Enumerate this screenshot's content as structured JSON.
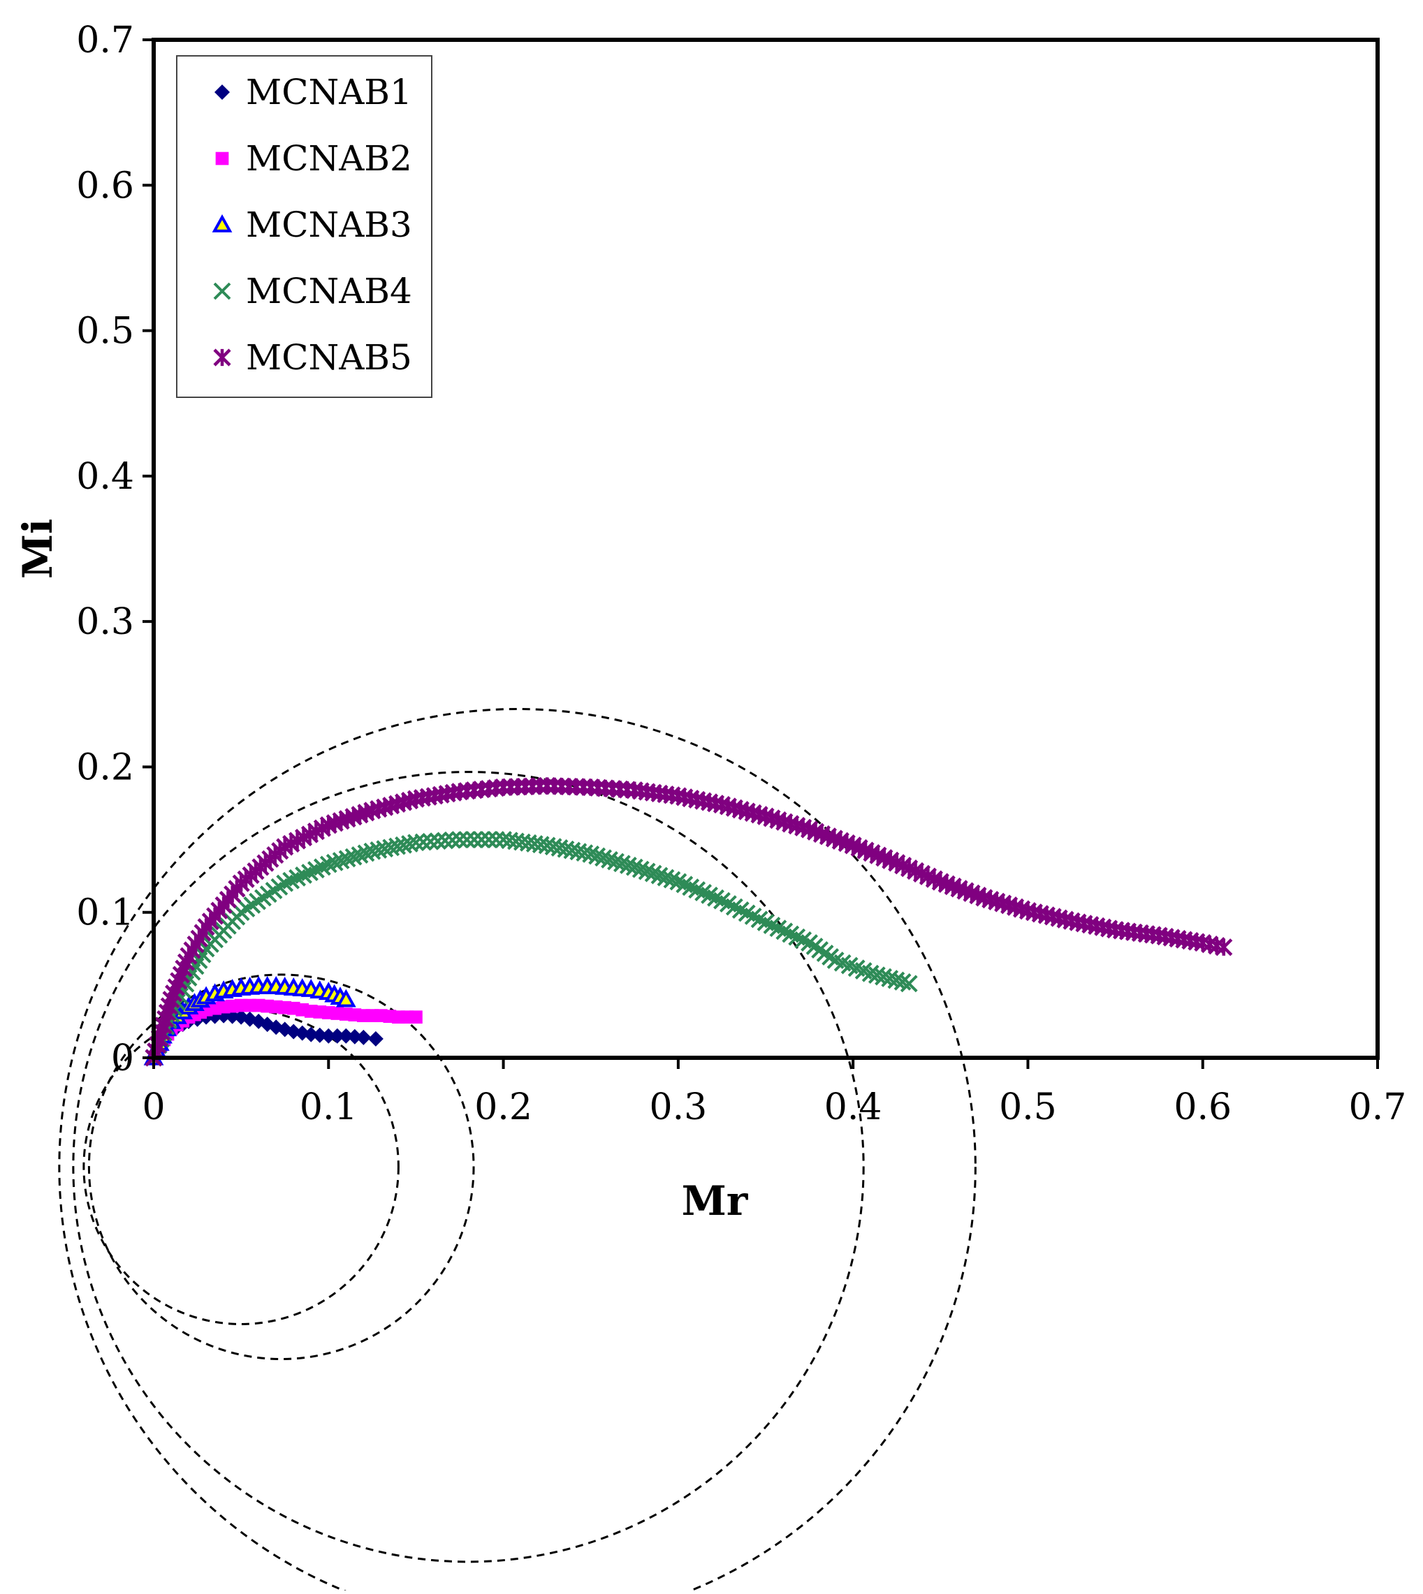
{
  "chart_data": {
    "type": "scatter",
    "title": "",
    "xlabel": "Mr",
    "ylabel": "Mi",
    "xlim": [
      0,
      0.7
    ],
    "ylim": [
      0,
      0.7
    ],
    "xticks": [
      0,
      0.1,
      0.2,
      0.3,
      0.4,
      0.5,
      0.6,
      0.7
    ],
    "yticks": [
      0,
      0.1,
      0.2,
      0.3,
      0.4,
      0.5,
      0.6,
      0.7
    ],
    "xtick_labels": [
      "0",
      "0.1",
      "0.2",
      "0.3",
      "0.4",
      "0.5",
      "0.6",
      "0.7"
    ],
    "ytick_labels": [
      "0",
      "0.1",
      "0.2",
      "0.3",
      "0.4",
      "0.5",
      "0.6",
      "0.7"
    ],
    "grid": false,
    "legend_position": "top-left",
    "series": [
      {
        "name": "MCNAB1",
        "marker": "diamond",
        "color": "#000080",
        "points": [
          [
            0.0,
            0.0
          ],
          [
            0.005,
            0.012
          ],
          [
            0.01,
            0.019
          ],
          [
            0.02,
            0.025
          ],
          [
            0.03,
            0.028
          ],
          [
            0.04,
            0.029
          ],
          [
            0.05,
            0.028
          ],
          [
            0.06,
            0.025
          ],
          [
            0.07,
            0.021
          ],
          [
            0.08,
            0.018
          ],
          [
            0.09,
            0.016
          ],
          [
            0.1,
            0.015
          ],
          [
            0.11,
            0.015
          ],
          [
            0.12,
            0.014
          ],
          [
            0.127,
            0.013
          ]
        ]
      },
      {
        "name": "MCNAB2",
        "marker": "square",
        "color": "#ff00ff",
        "points": [
          [
            0.002,
            0.005
          ],
          [
            0.01,
            0.02
          ],
          [
            0.02,
            0.028
          ],
          [
            0.03,
            0.033
          ],
          [
            0.04,
            0.035
          ],
          [
            0.05,
            0.036
          ],
          [
            0.06,
            0.036
          ],
          [
            0.07,
            0.035
          ],
          [
            0.08,
            0.034
          ],
          [
            0.09,
            0.032
          ],
          [
            0.1,
            0.031
          ],
          [
            0.11,
            0.03
          ],
          [
            0.12,
            0.029
          ],
          [
            0.13,
            0.029
          ],
          [
            0.14,
            0.028
          ],
          [
            0.15,
            0.028
          ]
        ]
      },
      {
        "name": "MCNAB3",
        "marker": "triangle",
        "color": "#0000ff",
        "fill": "#ffff00",
        "points": [
          [
            0.0,
            0.0
          ],
          [
            0.005,
            0.015
          ],
          [
            0.01,
            0.025
          ],
          [
            0.02,
            0.035
          ],
          [
            0.03,
            0.042
          ],
          [
            0.04,
            0.046
          ],
          [
            0.05,
            0.048
          ],
          [
            0.06,
            0.049
          ],
          [
            0.07,
            0.049
          ],
          [
            0.08,
            0.048
          ],
          [
            0.09,
            0.047
          ],
          [
            0.1,
            0.045
          ],
          [
            0.11,
            0.04
          ]
        ]
      },
      {
        "name": "MCNAB4",
        "marker": "x",
        "color": "#2e8b57",
        "points": [
          [
            0.0,
            0.0
          ],
          [
            0.01,
            0.03
          ],
          [
            0.02,
            0.055
          ],
          [
            0.03,
            0.075
          ],
          [
            0.05,
            0.1
          ],
          [
            0.075,
            0.12
          ],
          [
            0.1,
            0.133
          ],
          [
            0.125,
            0.142
          ],
          [
            0.15,
            0.148
          ],
          [
            0.175,
            0.15
          ],
          [
            0.2,
            0.15
          ],
          [
            0.225,
            0.146
          ],
          [
            0.25,
            0.14
          ],
          [
            0.275,
            0.131
          ],
          [
            0.3,
            0.121
          ],
          [
            0.325,
            0.108
          ],
          [
            0.35,
            0.093
          ],
          [
            0.375,
            0.079
          ],
          [
            0.39,
            0.067
          ],
          [
            0.41,
            0.058
          ],
          [
            0.432,
            0.051
          ]
        ]
      },
      {
        "name": "MCNAB5",
        "marker": "star",
        "color": "#800080",
        "points": [
          [
            0.0,
            0.0
          ],
          [
            0.01,
            0.04
          ],
          [
            0.02,
            0.07
          ],
          [
            0.03,
            0.09
          ],
          [
            0.05,
            0.12
          ],
          [
            0.075,
            0.145
          ],
          [
            0.1,
            0.16
          ],
          [
            0.125,
            0.17
          ],
          [
            0.15,
            0.178
          ],
          [
            0.175,
            0.183
          ],
          [
            0.2,
            0.186
          ],
          [
            0.225,
            0.187
          ],
          [
            0.25,
            0.186
          ],
          [
            0.275,
            0.184
          ],
          [
            0.3,
            0.18
          ],
          [
            0.325,
            0.174
          ],
          [
            0.35,
            0.166
          ],
          [
            0.375,
            0.157
          ],
          [
            0.4,
            0.146
          ],
          [
            0.425,
            0.134
          ],
          [
            0.45,
            0.121
          ],
          [
            0.475,
            0.11
          ],
          [
            0.5,
            0.101
          ],
          [
            0.525,
            0.094
          ],
          [
            0.55,
            0.088
          ],
          [
            0.575,
            0.084
          ],
          [
            0.6,
            0.079
          ],
          [
            0.612,
            0.076
          ]
        ]
      }
    ],
    "fitted_circles": [
      {
        "center": [
          0.05,
          -0.075
        ],
        "radius": 0.09
      },
      {
        "center": [
          0.073,
          -0.075
        ],
        "radius": 0.11
      },
      {
        "center": [
          0.18,
          -0.075
        ],
        "radius": 0.226
      },
      {
        "center": [
          0.208,
          -0.075
        ],
        "radius": 0.262
      }
    ]
  }
}
